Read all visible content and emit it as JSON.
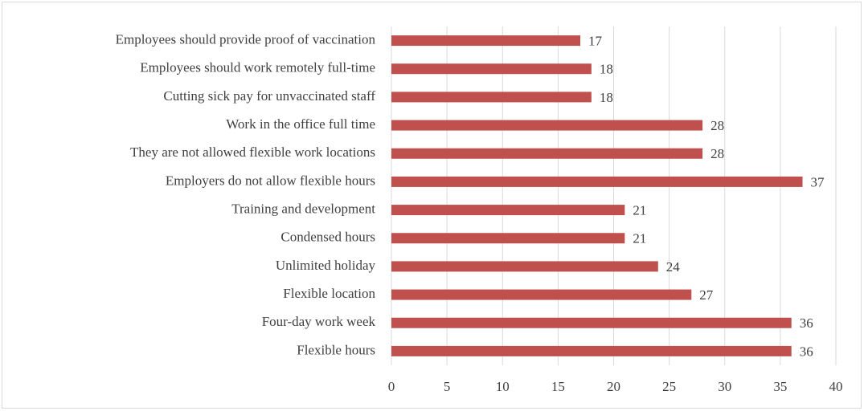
{
  "chart_data": {
    "type": "bar",
    "orientation": "horizontal",
    "categories": [
      "Employees should provide proof of vaccination",
      "Employees should work remotely full-time",
      "Cutting sick pay for unvaccinated staff",
      "Work in the office full time",
      "They are not allowed flexible work locations",
      "Employers do not allow flexible hours",
      "Training and development",
      "Condensed hours",
      "Unlimited holiday",
      "Flexible location",
      "Four-day work week",
      "Flexible hours"
    ],
    "values": [
      17,
      18,
      18,
      28,
      28,
      37,
      21,
      21,
      24,
      27,
      36,
      36
    ],
    "color": "#c0504d",
    "xlim": [
      0,
      40
    ],
    "xticks": [
      0,
      5,
      10,
      15,
      20,
      25,
      30,
      35,
      40
    ],
    "grid": true
  }
}
